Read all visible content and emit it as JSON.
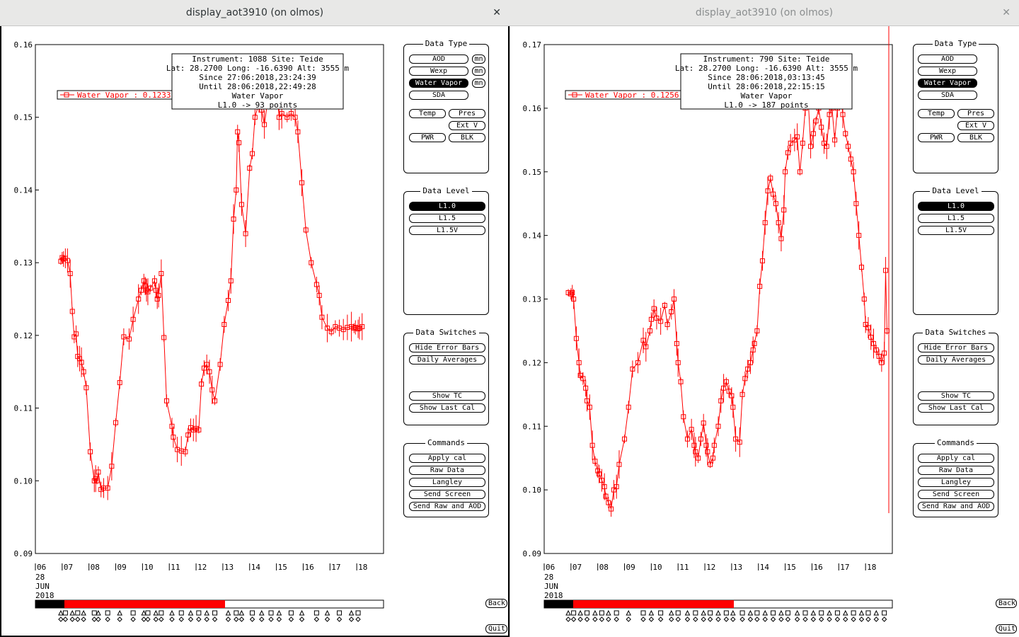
{
  "colors": {
    "series": "#ff0000",
    "accent": "#000000"
  },
  "windows": [
    {
      "title": "display_aot3910 (on olmos)",
      "info": [
        "Instrument: 1088 Site: Teide",
        "Lat: 28.2700 Long: -16.6390 Alt: 3555 m",
        "Since 27:06:2018,23:24:39",
        "Until 28:06:2018,22:49:28",
        "Water Vapor",
        "L1.0 -> 93 points"
      ],
      "legend": "Water Vapor : 0.1233 ±",
      "yticks": [
        "0.16",
        "0.15",
        "0.14",
        "0.13",
        "0.12",
        "0.11",
        "0.10",
        "0.09"
      ],
      "xticks": [
        "06",
        "07",
        "08",
        "09",
        "10",
        "11",
        "12",
        "13",
        "14",
        "15",
        "16",
        "17",
        "18"
      ],
      "date_lines": [
        "28",
        "JUN",
        "2018"
      ],
      "chart_data": {
        "type": "line",
        "ylim": [
          0.09,
          0.16
        ],
        "xlim": [
          6,
          19
        ],
        "series": [
          {
            "name": "Water Vapor",
            "x": [
              6.95,
              7.0,
              7.05,
              7.12,
              7.2,
              7.3,
              7.38,
              7.45,
              7.52,
              7.58,
              7.65,
              7.72,
              7.8,
              7.9,
              8.05,
              8.2,
              8.25,
              8.3,
              8.35,
              8.45,
              8.55,
              8.7,
              8.85,
              9.0,
              9.15,
              9.3,
              9.5,
              9.65,
              9.85,
              9.95,
              10.05,
              10.1,
              10.15,
              10.2,
              10.3,
              10.45,
              10.5,
              10.55,
              10.6,
              10.7,
              10.8,
              10.9,
              11.1,
              11.15,
              11.3,
              11.45,
              11.6,
              11.7,
              11.8,
              11.9,
              12.0,
              12.1,
              12.2,
              12.3,
              12.4,
              12.5,
              12.6,
              12.7,
              12.9,
              13.05,
              13.2,
              13.3,
              13.4,
              13.5,
              13.55,
              13.6,
              13.7,
              13.85,
              14.0,
              14.1,
              14.2,
              14.35,
              14.45,
              14.55,
              14.7,
              14.8,
              14.9,
              15.0,
              15.1,
              15.2,
              15.4,
              15.55,
              15.7,
              15.8,
              15.95,
              16.1,
              16.3,
              16.5,
              16.6,
              16.7,
              16.9,
              17.05,
              17.2,
              17.35,
              17.5,
              17.65,
              17.8,
              17.9,
              17.95,
              18.05,
              18.1,
              18.2
            ],
            "values": [
              0.1302,
              0.1307,
              0.1305,
              0.1306,
              0.1303,
              0.1285,
              0.1233,
              0.1198,
              0.1202,
              0.1171,
              0.1168,
              0.1163,
              0.115,
              0.1128,
              0.104,
              0.1,
              0.1003,
              0.1,
              0.1012,
              0.0988,
              0.099,
              0.099,
              0.102,
              0.108,
              0.1135,
              0.1198,
              0.1195,
              0.1222,
              0.125,
              0.1262,
              0.1275,
              0.1268,
              0.1262,
              0.126,
              0.1265,
              0.1275,
              0.1262,
              0.125,
              0.1255,
              0.1285,
              0.1197,
              0.111,
              0.1075,
              0.106,
              0.1043,
              0.1041,
              0.104,
              0.1063,
              0.1073,
              0.107,
              0.1072,
              0.107,
              0.1133,
              0.1155,
              0.116,
              0.115,
              0.1125,
              0.111,
              0.116,
              0.1215,
              0.1248,
              0.1275,
              0.136,
              0.14,
              0.148,
              0.1465,
              0.138,
              0.134,
              0.143,
              0.145,
              0.15,
              0.152,
              0.151,
              0.149,
              0.153,
              0.155,
              0.1555,
              0.1548,
              0.15,
              0.1505,
              0.15,
              0.1505,
              0.15,
              0.148,
              0.141,
              0.1345,
              0.13,
              0.127,
              0.1255,
              0.1225,
              0.121,
              0.1205,
              0.1212,
              0.121,
              0.1208,
              0.1211,
              0.1212,
              0.121,
              0.1211,
              0.1209,
              0.121,
              0.1212
            ]
          }
        ]
      },
      "buttons": {
        "data_type_title": "Data Type",
        "aod": "AOD",
        "wexp": "Wexp",
        "water_vapor": "Water Vapor",
        "sda": "SDA",
        "mn": "mn",
        "temp": "Temp",
        "pres": "Pres",
        "ext_v": "Ext V",
        "pwr": "PWR",
        "blk": "BLK",
        "data_level_title": "Data Level",
        "l10": "L1.0",
        "l15": "L1.5",
        "l15v": "L1.5V",
        "switches_title": "Data Switches",
        "hide_err": "Hide Error Bars",
        "daily_avg": "Daily Averages",
        "show_tc": "Show TC",
        "show_last_cal": "Show Last Cal",
        "commands_title": "Commands",
        "apply_cal": "Apply cal",
        "raw_data": "Raw Data",
        "langley": "Langley",
        "send_screen": "Send Screen",
        "send_raw_aod": "Send Raw and AOD",
        "back": "Back",
        "quit": "Quit"
      }
    },
    {
      "title": "display_aot3910 (on olmos)",
      "info": [
        "Instrument: 790 Site: Teide",
        "Lat: 28.2700 Long: -16.6390 Alt: 3555 m",
        "Since 28:06:2018,03:13:45",
        "Until 28:06:2018,22:15:15",
        "Water Vapor",
        "L1.0 -> 187 points"
      ],
      "legend": "Water Vapor : 0.1256 ±",
      "yticks": [
        "0.17",
        "0.16",
        "0.15",
        "0.14",
        "0.13",
        "0.12",
        "0.11",
        "0.10",
        "0.09"
      ],
      "xticks": [
        "06",
        "07",
        "08",
        "09",
        "10",
        "11",
        "12",
        "13",
        "14",
        "15",
        "16",
        "17",
        "18"
      ],
      "date_lines": [
        "28",
        "JUN",
        "2018"
      ],
      "chart_data": {
        "type": "line",
        "ylim": [
          0.09,
          0.17
        ],
        "xlim": [
          6,
          19
        ],
        "series": [
          {
            "name": "Water Vapor",
            "x": [
              6.9,
              7.0,
              7.05,
              7.1,
              7.2,
              7.3,
              7.35,
              7.45,
              7.55,
              7.6,
              7.7,
              7.8,
              7.9,
              8.0,
              8.05,
              8.15,
              8.25,
              8.3,
              8.4,
              8.5,
              8.6,
              8.7,
              8.8,
              9.0,
              9.15,
              9.3,
              9.5,
              9.7,
              9.8,
              9.95,
              10.0,
              10.1,
              10.2,
              10.35,
              10.5,
              10.6,
              10.75,
              10.85,
              10.95,
              11.0,
              11.1,
              11.2,
              11.35,
              11.5,
              11.6,
              11.65,
              11.75,
              11.85,
              11.95,
              12.05,
              12.1,
              12.2,
              12.3,
              12.35,
              12.5,
              12.6,
              12.7,
              12.8,
              12.9,
              13.0,
              13.05,
              13.15,
              13.3,
              13.4,
              13.5,
              13.6,
              13.7,
              13.8,
              13.85,
              13.95,
              14.05,
              14.15,
              14.25,
              14.35,
              14.45,
              14.55,
              14.65,
              14.75,
              14.85,
              14.95,
              15.0,
              15.1,
              15.2,
              15.35,
              15.45,
              15.55,
              15.65,
              15.75,
              15.85,
              15.95,
              16.05,
              16.15,
              16.25,
              16.35,
              16.45,
              16.55,
              16.65,
              16.75,
              16.85,
              16.95,
              17.05,
              17.15,
              17.25,
              17.35,
              17.45,
              17.55,
              17.65,
              17.75,
              17.85,
              17.95,
              18.0,
              18.1,
              18.2,
              18.3,
              18.4,
              18.5,
              18.6,
              18.7,
              18.75,
              18.8
            ],
            "values": [
              0.131,
              0.1308,
              0.131,
              0.13,
              0.1238,
              0.12,
              0.118,
              0.1175,
              0.116,
              0.114,
              0.113,
              0.107,
              0.1045,
              0.103,
              0.1025,
              0.1015,
              0.1005,
              0.099,
              0.098,
              0.097,
              0.1,
              0.1005,
              0.104,
              0.108,
              0.113,
              0.119,
              0.12,
              0.1235,
              0.1225,
              0.125,
              0.1268,
              0.1285,
              0.127,
              0.1265,
              0.129,
              0.126,
              0.128,
              0.13,
              0.123,
              0.12,
              0.117,
              0.1115,
              0.108,
              0.1095,
              0.107,
              0.106,
              0.105,
              0.108,
              0.1105,
              0.107,
              0.106,
              0.104,
              0.105,
              0.107,
              0.11,
              0.114,
              0.116,
              0.117,
              0.1155,
              0.1148,
              0.113,
              0.108,
              0.1075,
              0.115,
              0.1175,
              0.119,
              0.12,
              0.122,
              0.123,
              0.125,
              0.132,
              0.136,
              0.142,
              0.147,
              0.149,
              0.1465,
              0.145,
              0.142,
              0.1395,
              0.144,
              0.15,
              0.153,
              0.1545,
              0.155,
              0.1555,
              0.15,
              0.1545,
              0.16,
              0.162,
              0.154,
              0.156,
              0.158,
              0.16,
              0.157,
              0.1545,
              0.154,
              0.159,
              0.16,
              0.155,
              0.16,
              0.163,
              0.159,
              0.156,
              0.154,
              0.152,
              0.15,
              0.145,
              0.14,
              0.135,
              0.13,
              0.126,
              0.1255,
              0.124,
              0.123,
              0.122,
              0.121,
              0.12,
              0.1215,
              0.1345,
              0.125
            ]
          }
        ]
      },
      "buttons": {
        "data_type_title": "Data Type",
        "aod": "AOD",
        "wexp": "Wexp",
        "water_vapor": "Water Vapor",
        "sda": "SDA",
        "mn": "",
        "temp": "Temp",
        "pres": "Pres",
        "ext_v": "Ext V",
        "pwr": "PWR",
        "blk": "BLK",
        "data_level_title": "Data Level",
        "l10": "L1.0",
        "l15": "L1.5",
        "l15v": "L1.5V",
        "switches_title": "Data Switches",
        "hide_err": "Hide Error Bars",
        "daily_avg": "Daily Averages",
        "show_tc": "Show TC",
        "show_last_cal": "Show Last Cal",
        "commands_title": "Commands",
        "apply_cal": "Apply cal",
        "raw_data": "Raw Data",
        "langley": "Langley",
        "send_screen": "Send Screen",
        "send_raw_aod": "Send Raw and AOD",
        "back": "Back",
        "quit": "Quit"
      }
    }
  ]
}
